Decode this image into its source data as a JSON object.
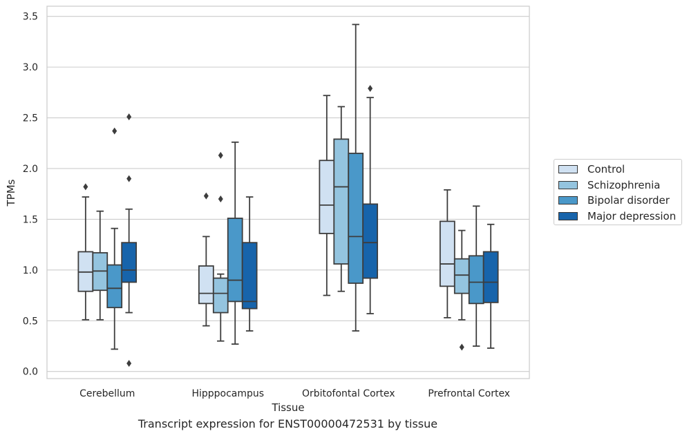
{
  "chart_data": {
    "type": "boxplot",
    "title": "",
    "caption": "Transcript expression for ENST00000472531 by tissue",
    "xlabel": "Tissue",
    "ylabel": "TPMs",
    "ylim": [
      -0.07,
      3.6
    ],
    "yticks": [
      "0.0",
      "0.5",
      "1.0",
      "1.5",
      "2.0",
      "2.5",
      "3.0",
      "3.5"
    ],
    "ytick_values": [
      0,
      0.5,
      1,
      1.5,
      2,
      2.5,
      3,
      3.5
    ],
    "categories": [
      "Cerebellum",
      "Hipppocampus",
      "Orbitofontal Cortex",
      "Prefrontal Cortex"
    ],
    "grid": "horizontal",
    "legend_position": "right",
    "series": [
      {
        "name": "Control",
        "color": "#d0e1f2",
        "boxes": [
          {
            "whislo": 0.51,
            "q1": 0.79,
            "med": 0.98,
            "q3": 1.18,
            "whishi": 1.72,
            "fliers": [
              1.82
            ]
          },
          {
            "whislo": 0.45,
            "q1": 0.67,
            "med": 0.77,
            "q3": 1.04,
            "whishi": 1.33,
            "fliers": [
              1.73
            ]
          },
          {
            "whislo": 0.75,
            "q1": 1.36,
            "med": 1.64,
            "q3": 2.08,
            "whishi": 2.72,
            "fliers": []
          },
          {
            "whislo": 0.53,
            "q1": 0.84,
            "med": 1.06,
            "q3": 1.48,
            "whishi": 1.79,
            "fliers": []
          }
        ]
      },
      {
        "name": "Schizophrenia",
        "color": "#94c4df",
        "boxes": [
          {
            "whislo": 0.51,
            "q1": 0.8,
            "med": 0.99,
            "q3": 1.17,
            "whishi": 1.58,
            "fliers": []
          },
          {
            "whislo": 0.3,
            "q1": 0.58,
            "med": 0.77,
            "q3": 0.92,
            "whishi": 0.96,
            "fliers": [
              2.13,
              1.7
            ]
          },
          {
            "whislo": 0.79,
            "q1": 1.06,
            "med": 1.82,
            "q3": 2.29,
            "whishi": 2.61,
            "fliers": []
          },
          {
            "whislo": 0.51,
            "q1": 0.77,
            "med": 0.95,
            "q3": 1.11,
            "whishi": 1.39,
            "fliers": [
              0.24
            ]
          }
        ]
      },
      {
        "name": "Bipolar disorder",
        "color": "#4a98c9",
        "boxes": [
          {
            "whislo": 0.22,
            "q1": 0.63,
            "med": 0.82,
            "q3": 1.05,
            "whishi": 1.41,
            "fliers": [
              2.37
            ]
          },
          {
            "whislo": 0.27,
            "q1": 0.69,
            "med": 0.9,
            "q3": 1.51,
            "whishi": 2.26,
            "fliers": []
          },
          {
            "whislo": 0.4,
            "q1": 0.87,
            "med": 1.33,
            "q3": 2.15,
            "whishi": 3.42,
            "fliers": []
          },
          {
            "whislo": 0.25,
            "q1": 0.67,
            "med": 0.88,
            "q3": 1.14,
            "whishi": 1.63,
            "fliers": []
          }
        ]
      },
      {
        "name": "Major depression",
        "color": "#1764ab",
        "boxes": [
          {
            "whislo": 0.58,
            "q1": 0.88,
            "med": 1.0,
            "q3": 1.27,
            "whishi": 1.6,
            "fliers": [
              2.51,
              1.9,
              0.08
            ]
          },
          {
            "whislo": 0.4,
            "q1": 0.62,
            "med": 0.69,
            "q3": 1.27,
            "whishi": 1.72,
            "fliers": []
          },
          {
            "whislo": 0.57,
            "q1": 0.92,
            "med": 1.27,
            "q3": 1.65,
            "whishi": 2.7,
            "fliers": [
              2.79
            ]
          },
          {
            "whislo": 0.23,
            "q1": 0.68,
            "med": 0.88,
            "q3": 1.18,
            "whishi": 1.45,
            "fliers": []
          }
        ]
      }
    ]
  }
}
